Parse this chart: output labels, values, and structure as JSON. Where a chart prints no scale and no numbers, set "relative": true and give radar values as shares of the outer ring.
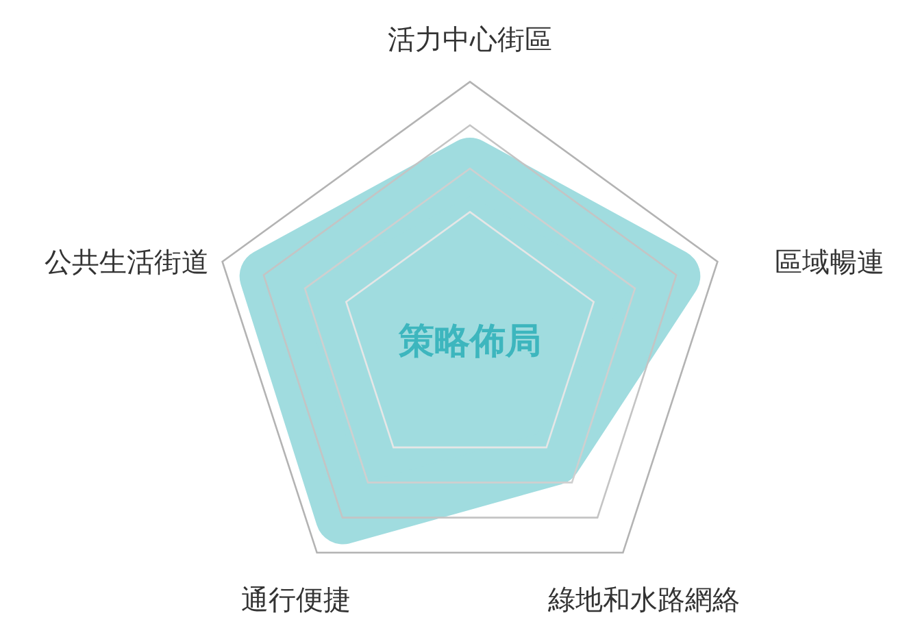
{
  "chart_data": {
    "type": "radar",
    "title": "策略佈局",
    "relative": true,
    "categories": [
      "活力中心街區",
      "區域暢連",
      "綠地和水路網絡",
      "通行便捷",
      "公共生活街道"
    ],
    "series": [
      {
        "color": "#a0dcdf",
        "values": [
          0.68,
          0.82,
          0.55,
          0.83,
          0.82
        ]
      }
    ]
  }
}
